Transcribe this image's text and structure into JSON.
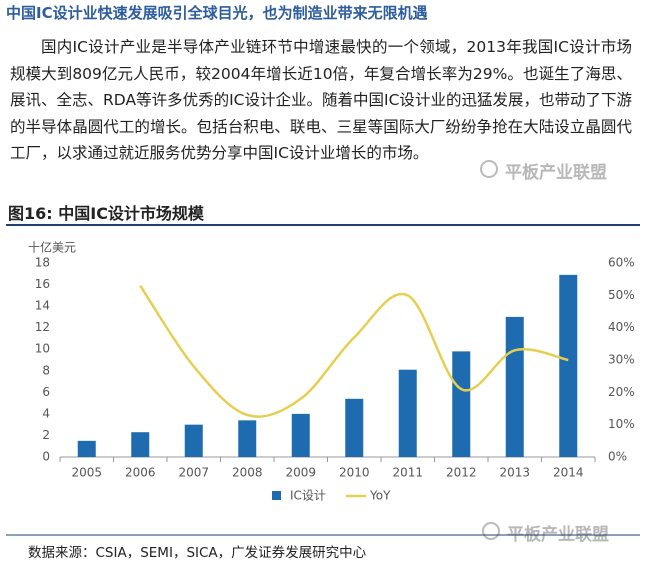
{
  "heading": "中国IC设计业快速发展吸引全球目光，也为制造业带来无限机遇",
  "paragraph": "国内IC设计产业是半导体产业链环节中增速最快的一个领域，2013年我国IC设计市场规模大到809亿元人民币，较2004年增长近10倍，年复合增长率为29%。也诞生了海思、展讯、全志、RDA等许多优秀的IC设计企业。随着中国IC设计业的迅猛发展，也带动了下游的半导体晶圆代工的增长。包括台积电、联电、三星等国际大厂纷纷争抢在大陆设立晶圆代工厂，以求通过就近服务优势分享中国IC设计业增长的市场。",
  "watermarks": [
    "平板产业联盟",
    "平板产业联盟"
  ],
  "source": "数据来源：CSIA，SEMI，SICA，广发证券发展研究中心",
  "chart_data": {
    "type": "bar",
    "title": "图16: 中国IC设计市场规模",
    "y_label": "十亿美元",
    "categories": [
      "2005",
      "2006",
      "2007",
      "2008",
      "2009",
      "2010",
      "2011",
      "2012",
      "2013",
      "2014"
    ],
    "series": [
      {
        "name": "IC设计",
        "type": "bar",
        "color": "#1f6bb0",
        "values": [
          1.5,
          2.3,
          3.0,
          3.4,
          4.0,
          5.4,
          8.1,
          9.8,
          13.0,
          16.9
        ]
      },
      {
        "name": "YoY",
        "type": "line",
        "axis": "y2",
        "color": "#e6cf50",
        "values": [
          null,
          53,
          28,
          13,
          18,
          37,
          50,
          21,
          33,
          30
        ]
      }
    ],
    "ylim": [
      0,
      18
    ],
    "yticks": [
      0,
      2,
      4,
      6,
      8,
      10,
      12,
      14,
      16,
      18
    ],
    "y2lim": [
      0,
      60
    ],
    "y2ticks": [
      {
        "value": 0,
        "label": "0%"
      },
      {
        "value": 10,
        "label": "10%"
      },
      {
        "value": 20,
        "label": "20%"
      },
      {
        "value": 30,
        "label": "30%"
      },
      {
        "value": 40,
        "label": "40%"
      },
      {
        "value": 50,
        "label": "50%"
      },
      {
        "value": 60,
        "label": "60%"
      }
    ],
    "grid": false,
    "legend": "bottom"
  }
}
